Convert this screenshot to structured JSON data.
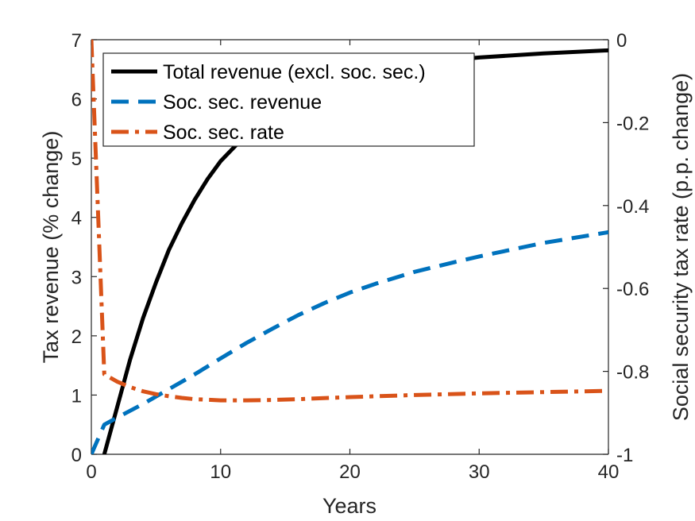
{
  "chart_data": {
    "type": "line",
    "xlabel": "Years",
    "ylabel_left": "Tax revenue (% change)",
    "ylabel_right": "Social security tax rate (p.p. change)",
    "xlim": [
      0,
      40
    ],
    "ylim_left": [
      0,
      7
    ],
    "ylim_right": [
      -1,
      0
    ],
    "xticks": [
      0,
      10,
      20,
      30,
      40
    ],
    "yticks_left": [
      0,
      1,
      2,
      3,
      4,
      5,
      6,
      7
    ],
    "yticks_right": [
      -1,
      -0.8,
      -0.6,
      -0.4,
      -0.2,
      0
    ],
    "xtick_labels": [
      "0",
      "10",
      "20",
      "30",
      "40"
    ],
    "ytick_labels_left": [
      "0",
      "1",
      "2",
      "3",
      "4",
      "5",
      "6",
      "7"
    ],
    "ytick_labels_right": [
      "-1",
      "-0.8",
      "-0.6",
      "-0.4",
      "-0.2",
      "0"
    ],
    "grid": false,
    "legend_position": "top-left",
    "series": [
      {
        "name": "Total revenue (excl. soc. sec.)",
        "axis": "left",
        "color": "#000000",
        "style": "solid",
        "x": [
          1,
          1.5,
          2,
          3,
          4,
          5,
          6,
          7,
          8,
          9,
          10,
          12,
          14,
          16,
          18,
          20,
          22,
          25,
          28,
          30,
          35,
          40
        ],
        "y": [
          0,
          0.4,
          0.8,
          1.6,
          2.3,
          2.9,
          3.45,
          3.9,
          4.3,
          4.65,
          4.95,
          5.4,
          5.75,
          6.0,
          6.2,
          6.35,
          6.45,
          6.58,
          6.66,
          6.7,
          6.77,
          6.82
        ]
      },
      {
        "name": "Soc. sec. revenue",
        "axis": "left",
        "color": "#0072BD",
        "style": "dashed",
        "x": [
          0,
          1,
          2,
          4,
          6,
          8,
          10,
          12,
          14,
          16,
          18,
          20,
          22,
          25,
          28,
          30,
          35,
          40
        ],
        "y": [
          0,
          0.5,
          0.62,
          0.85,
          1.1,
          1.35,
          1.62,
          1.88,
          2.12,
          2.35,
          2.55,
          2.73,
          2.88,
          3.08,
          3.24,
          3.34,
          3.57,
          3.75
        ]
      },
      {
        "name": "Soc. sec. rate",
        "axis": "right",
        "color": "#D95319",
        "style": "dashdot",
        "x": [
          0,
          1,
          2,
          3,
          4,
          5,
          6,
          7,
          8,
          10,
          12,
          14,
          16,
          20,
          25,
          30,
          35,
          40
        ],
        "y": [
          0,
          -0.807,
          -0.825,
          -0.838,
          -0.848,
          -0.855,
          -0.86,
          -0.864,
          -0.867,
          -0.87,
          -0.87,
          -0.869,
          -0.867,
          -0.862,
          -0.857,
          -0.853,
          -0.85,
          -0.847
        ]
      }
    ]
  }
}
